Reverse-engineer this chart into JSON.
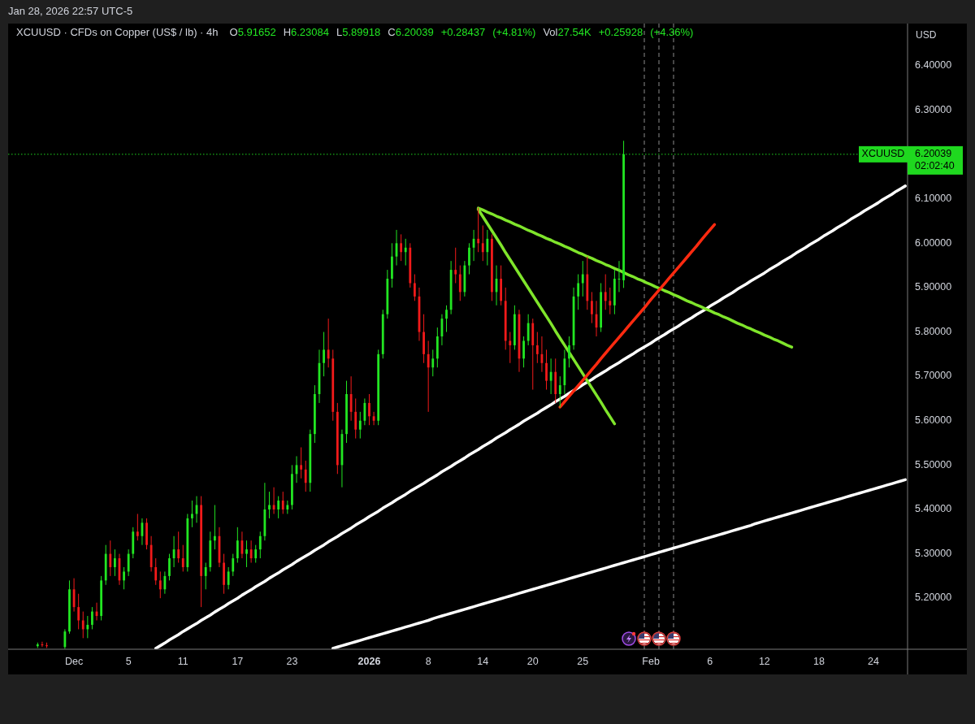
{
  "chart_data": {
    "type": "candlestick",
    "title": "XCUUSD · CFDs on Copper (US$ / lb) · 4h",
    "subtitle": "O5.91652 H6.23084 L5.89918 C6.20039 +0.28437 (+4.81%) Vol27.54K +0.25928 (+4.36%)",
    "ylabel": "USD",
    "annotations": [
      "Jan 28, 2026 22:57 UTC-5",
      "02:02:40"
    ],
    "ylim": [
      5.085,
      6.495
    ],
    "yticks": [
      {
        "value": 5.2,
        "label": "5.20000"
      },
      {
        "value": 5.3,
        "label": "5.30000"
      },
      {
        "value": 5.4,
        "label": "5.40000"
      },
      {
        "value": 5.5,
        "label": "5.50000"
      },
      {
        "value": 5.6,
        "label": "5.60000"
      },
      {
        "value": 5.7,
        "label": "5.70000"
      },
      {
        "value": 5.8,
        "label": "5.80000"
      },
      {
        "value": 5.9,
        "label": "5.90000"
      },
      {
        "value": 6.0,
        "label": "6.00000"
      },
      {
        "value": 6.1,
        "label": "6.10000"
      },
      {
        "value": 6.20039,
        "label": "6.20039"
      },
      {
        "value": 6.3,
        "label": "6.30000"
      },
      {
        "value": 6.4,
        "label": "6.40000"
      }
    ],
    "categories": [
      null,
      null,
      null,
      null,
      null,
      null,
      null,
      null,
      null,
      null,
      null,
      null,
      null,
      null,
      "Dec",
      null,
      null,
      null,
      null,
      null,
      null,
      null,
      null,
      null,
      null,
      null,
      "5",
      null,
      null,
      null,
      null,
      null,
      null,
      null,
      null,
      null,
      null,
      null,
      "11",
      null,
      null,
      null,
      null,
      null,
      null,
      null,
      null,
      null,
      null,
      null,
      "17",
      null,
      null,
      null,
      null,
      null,
      null,
      null,
      null,
      null,
      null,
      null,
      "23",
      null,
      null,
      null,
      null,
      null,
      null,
      null,
      null,
      null,
      null,
      null,
      null,
      null,
      null,
      null,
      null,
      "2026",
      null,
      null,
      null,
      null,
      null,
      null,
      null,
      null,
      null,
      null,
      null,
      null,
      "8",
      null,
      null,
      null,
      null,
      null,
      null,
      null,
      null,
      null,
      null,
      null,
      "14",
      null,
      null,
      null,
      null,
      null,
      null,
      null,
      null,
      null,
      null,
      "20",
      null,
      null,
      null,
      null,
      null,
      null,
      null,
      null,
      null,
      null,
      "25",
      null,
      null,
      null,
      null,
      null,
      null,
      null,
      null,
      null,
      null,
      null,
      null,
      null,
      null,
      "Feb",
      null,
      null,
      null,
      null,
      null,
      null,
      null,
      null,
      null,
      null,
      null,
      null,
      "6",
      null,
      null,
      null,
      null,
      null,
      null,
      null,
      null,
      null,
      null,
      null,
      "12",
      null,
      null,
      null,
      null,
      null,
      null,
      null,
      null,
      null,
      null,
      null,
      "18",
      null,
      null,
      null,
      null,
      null,
      null,
      null,
      null,
      null,
      null,
      null,
      "24",
      null,
      null,
      null,
      null,
      null,
      null,
      null
    ],
    "ohlc": [
      null,
      null,
      null,
      null,
      null,
      null,
      [
        5.092,
        5.1,
        5.088,
        5.096
      ],
      [
        5.096,
        5.102,
        5.09,
        5.094
      ],
      [
        5.094,
        5.1,
        5.088,
        5.092
      ],
      null,
      null,
      null,
      [
        5.09,
        5.13,
        5.086,
        5.125
      ],
      [
        5.125,
        5.24,
        5.12,
        5.22
      ],
      [
        5.22,
        5.245,
        5.17,
        5.18
      ],
      [
        5.18,
        5.21,
        5.13,
        5.15
      ],
      [
        5.15,
        5.17,
        5.11,
        5.13
      ],
      [
        5.13,
        5.16,
        5.11,
        5.14
      ],
      [
        5.14,
        5.18,
        5.13,
        5.17
      ],
      [
        5.17,
        5.19,
        5.15,
        5.16
      ],
      [
        5.16,
        5.25,
        5.15,
        5.24
      ],
      [
        5.24,
        5.32,
        5.23,
        5.3
      ],
      [
        5.3,
        5.33,
        5.25,
        5.27
      ],
      [
        5.27,
        5.31,
        5.25,
        5.29
      ],
      [
        5.29,
        5.3,
        5.23,
        5.24
      ],
      [
        5.24,
        5.27,
        5.22,
        5.26
      ],
      [
        5.26,
        5.31,
        5.25,
        5.3
      ],
      [
        5.3,
        5.36,
        5.29,
        5.35
      ],
      [
        5.35,
        5.39,
        5.33,
        5.34
      ],
      [
        5.34,
        5.38,
        5.32,
        5.37
      ],
      [
        5.37,
        5.38,
        5.31,
        5.32
      ],
      [
        5.32,
        5.34,
        5.26,
        5.27
      ],
      [
        5.27,
        5.29,
        5.23,
        5.24
      ],
      [
        5.24,
        5.26,
        5.2,
        5.22
      ],
      [
        5.22,
        5.26,
        5.21,
        5.25
      ],
      [
        5.25,
        5.3,
        5.24,
        5.29
      ],
      [
        5.29,
        5.34,
        5.27,
        5.31
      ],
      [
        5.31,
        5.35,
        5.28,
        5.29
      ],
      [
        5.29,
        5.32,
        5.26,
        5.27
      ],
      [
        5.27,
        5.39,
        5.26,
        5.38
      ],
      [
        5.38,
        5.42,
        5.36,
        5.39
      ],
      [
        5.39,
        5.43,
        5.37,
        5.41
      ],
      [
        5.41,
        5.43,
        5.18,
        5.25
      ],
      [
        5.25,
        5.28,
        5.22,
        5.27
      ],
      [
        5.27,
        5.35,
        5.26,
        5.33
      ],
      [
        5.33,
        5.41,
        5.31,
        5.34
      ],
      [
        5.34,
        5.36,
        5.27,
        5.28
      ],
      [
        5.28,
        5.3,
        5.21,
        5.23
      ],
      [
        5.23,
        5.27,
        5.22,
        5.26
      ],
      [
        5.26,
        5.3,
        5.25,
        5.29
      ],
      [
        5.29,
        5.36,
        5.28,
        5.33
      ],
      [
        5.33,
        5.35,
        5.29,
        5.3
      ],
      [
        5.3,
        5.33,
        5.27,
        5.31
      ],
      [
        5.31,
        5.33,
        5.28,
        5.29
      ],
      [
        5.29,
        5.32,
        5.28,
        5.31
      ],
      [
        5.31,
        5.35,
        5.29,
        5.34
      ],
      [
        5.34,
        5.46,
        5.33,
        5.4
      ],
      [
        5.4,
        5.44,
        5.38,
        5.41
      ],
      [
        5.41,
        5.45,
        5.39,
        5.4
      ],
      [
        5.4,
        5.43,
        5.38,
        5.42
      ],
      [
        5.42,
        5.44,
        5.39,
        5.4
      ],
      [
        5.4,
        5.42,
        5.39,
        5.41
      ],
      [
        5.41,
        5.5,
        5.4,
        5.48
      ],
      [
        5.48,
        5.52,
        5.46,
        5.5
      ],
      [
        5.5,
        5.54,
        5.47,
        5.49
      ],
      [
        5.49,
        5.51,
        5.44,
        5.46
      ],
      [
        5.46,
        5.58,
        5.44,
        5.57
      ],
      [
        5.57,
        5.68,
        5.55,
        5.66
      ],
      [
        5.66,
        5.76,
        5.64,
        5.73
      ],
      [
        5.73,
        5.8,
        5.7,
        5.76
      ],
      [
        5.76,
        5.83,
        5.72,
        5.74
      ],
      [
        5.74,
        5.76,
        5.6,
        5.62
      ],
      [
        5.62,
        5.64,
        5.48,
        5.5
      ],
      [
        5.5,
        5.58,
        5.45,
        5.57
      ],
      [
        5.57,
        5.69,
        5.55,
        5.66
      ],
      [
        5.66,
        5.7,
        5.6,
        5.62
      ],
      [
        5.62,
        5.65,
        5.56,
        5.58
      ],
      [
        5.58,
        5.62,
        5.56,
        5.6
      ],
      [
        5.6,
        5.65,
        5.59,
        5.64
      ],
      [
        5.64,
        5.66,
        5.59,
        5.61
      ],
      [
        5.61,
        5.62,
        5.59,
        5.6
      ],
      [
        5.6,
        5.76,
        5.59,
        5.75
      ],
      [
        5.75,
        5.85,
        5.74,
        5.84
      ],
      [
        5.84,
        5.94,
        5.83,
        5.92
      ],
      [
        5.92,
        6.0,
        5.9,
        5.97
      ],
      [
        5.97,
        6.03,
        5.95,
        6.0
      ],
      [
        6.0,
        6.02,
        5.96,
        5.98
      ],
      [
        5.98,
        6.01,
        5.95,
        5.99
      ],
      [
        5.99,
        6.0,
        5.9,
        5.91
      ],
      [
        5.91,
        5.93,
        5.87,
        5.88
      ],
      [
        5.88,
        5.9,
        5.78,
        5.8
      ],
      [
        5.8,
        5.84,
        5.73,
        5.75
      ],
      [
        5.75,
        5.78,
        5.62,
        5.72
      ],
      [
        5.72,
        5.76,
        5.7,
        5.74
      ],
      [
        5.74,
        5.81,
        5.72,
        5.79
      ],
      [
        5.79,
        5.84,
        5.77,
        5.83
      ],
      [
        5.83,
        5.86,
        5.8,
        5.85
      ],
      [
        5.85,
        5.96,
        5.84,
        5.94
      ],
      [
        5.94,
        5.99,
        5.91,
        5.93
      ],
      [
        5.93,
        5.95,
        5.87,
        5.89
      ],
      [
        5.89,
        5.96,
        5.88,
        5.95
      ],
      [
        5.95,
        6.0,
        5.93,
        5.99
      ],
      [
        5.99,
        6.03,
        5.96,
        6.01
      ],
      [
        6.01,
        6.08,
        5.98,
        6.0
      ],
      [
        6.0,
        6.04,
        5.96,
        5.98
      ],
      [
        5.98,
        6.03,
        5.95,
        6.01
      ],
      [
        6.01,
        6.02,
        5.87,
        5.89
      ],
      [
        5.89,
        5.95,
        5.86,
        5.92
      ],
      [
        5.92,
        5.95,
        5.86,
        5.87
      ],
      [
        5.87,
        5.9,
        5.76,
        5.78
      ],
      [
        5.78,
        5.8,
        5.73,
        5.77
      ],
      [
        5.77,
        5.86,
        5.76,
        5.84
      ],
      [
        5.84,
        5.85,
        5.71,
        5.74
      ],
      [
        5.74,
        5.79,
        5.72,
        5.78
      ],
      [
        5.78,
        5.84,
        5.77,
        5.82
      ],
      [
        5.82,
        5.83,
        5.67,
        5.77
      ],
      [
        5.77,
        5.8,
        5.73,
        5.75
      ],
      [
        5.75,
        5.79,
        5.71,
        5.73
      ],
      [
        5.73,
        5.76,
        5.67,
        5.69
      ],
      [
        5.69,
        5.74,
        5.66,
        5.71
      ],
      [
        5.71,
        5.74,
        5.64,
        5.66
      ],
      [
        5.66,
        5.7,
        5.63,
        5.68
      ],
      [
        5.68,
        5.76,
        5.66,
        5.74
      ],
      [
        5.74,
        5.79,
        5.72,
        5.77
      ],
      [
        5.77,
        5.9,
        5.76,
        5.88
      ],
      [
        5.88,
        5.93,
        5.85,
        5.91
      ],
      [
        5.91,
        5.96,
        5.88,
        5.93
      ],
      [
        5.93,
        5.97,
        5.85,
        5.87
      ],
      [
        5.87,
        5.89,
        5.82,
        5.84
      ],
      [
        5.84,
        5.87,
        5.79,
        5.81
      ],
      [
        5.81,
        5.91,
        5.8,
        5.89
      ],
      [
        5.89,
        5.93,
        5.85,
        5.87
      ],
      [
        5.87,
        5.9,
        5.84,
        5.86
      ],
      [
        5.86,
        5.94,
        5.84,
        5.92
      ],
      [
        5.92,
        5.96,
        5.89,
        5.92
      ],
      [
        5.91652,
        6.23084,
        5.89918,
        6.20039
      ],
      null,
      null,
      null,
      null,
      null,
      null,
      null,
      null,
      null,
      null,
      null,
      null,
      null,
      null,
      null,
      null,
      null,
      null,
      null,
      null,
      null,
      null,
      null,
      null,
      null,
      null,
      null,
      null,
      null,
      null,
      null,
      null,
      null,
      null,
      null,
      null,
      null,
      null,
      null,
      null,
      null,
      null,
      null,
      null,
      null,
      null,
      null,
      null,
      null,
      null,
      null,
      null,
      null,
      null,
      null,
      null,
      null,
      null,
      null,
      null,
      null,
      null
    ],
    "series": [
      {
        "type": "line",
        "color": "#ffffff",
        "values": [
          null,
          null,
          null,
          null,
          null,
          null,
          null,
          null,
          null,
          null,
          null,
          null,
          null,
          null,
          null,
          null,
          null,
          null,
          null,
          null,
          null,
          null,
          null,
          null,
          null,
          null,
          null,
          null,
          null,
          null,
          null,
          null,
          5.087,
          5.093,
          5.099,
          5.106,
          5.112,
          5.118,
          5.125,
          5.131,
          5.137,
          5.143,
          5.15,
          5.156,
          5.162,
          5.169,
          5.175,
          5.181,
          5.188,
          5.194,
          5.2,
          5.207,
          5.213,
          5.219,
          5.226,
          5.232,
          5.238,
          5.245,
          5.251,
          5.257,
          5.264,
          5.27,
          5.276,
          5.283,
          5.289,
          5.295,
          5.301,
          5.308,
          5.314,
          5.32,
          5.327,
          5.333,
          5.339,
          5.346,
          5.352,
          5.358,
          5.365,
          5.371,
          5.377,
          5.384,
          5.39,
          5.396,
          5.403,
          5.409,
          5.415,
          5.422,
          5.428,
          5.434,
          5.441,
          5.447,
          5.453,
          5.459,
          5.466,
          5.472,
          5.478,
          5.485,
          5.491,
          5.497,
          5.504,
          5.51,
          5.516,
          5.523,
          5.529,
          5.535,
          5.542,
          5.548,
          5.554,
          5.561,
          5.567,
          5.573,
          5.58,
          5.586,
          5.592,
          5.599,
          5.605,
          5.611,
          5.617,
          5.624,
          5.63,
          5.636,
          5.643,
          5.649,
          5.655,
          5.662,
          5.668,
          5.674,
          5.681,
          5.687,
          5.693,
          5.7,
          5.706,
          5.712,
          5.719,
          5.725,
          5.731,
          5.738,
          5.744,
          5.75,
          5.757,
          5.763,
          5.769,
          5.775,
          5.782,
          5.788,
          5.794,
          5.801,
          5.807,
          5.813,
          5.82,
          5.826,
          5.832,
          5.839,
          5.845,
          5.851,
          5.858,
          5.864,
          5.87,
          5.877,
          5.883,
          5.889,
          5.896,
          5.902,
          5.908,
          5.915,
          5.921,
          5.927,
          5.933,
          5.94,
          5.946,
          5.952,
          5.959,
          5.965,
          5.971,
          5.978,
          5.984,
          5.99,
          5.997,
          6.003,
          6.009,
          6.016,
          6.022,
          6.028,
          6.035,
          6.041,
          6.047,
          6.054,
          6.06,
          6.066,
          6.073,
          6.079,
          6.085,
          6.091,
          6.098,
          6.104,
          6.11,
          6.117,
          6.123,
          6.129
        ]
      },
      {
        "type": "line",
        "color": "#ffffff",
        "values": [
          null,
          null,
          null,
          null,
          null,
          null,
          null,
          null,
          null,
          null,
          null,
          null,
          null,
          null,
          null,
          null,
          null,
          null,
          null,
          null,
          null,
          null,
          null,
          null,
          null,
          null,
          null,
          null,
          null,
          null,
          null,
          null,
          null,
          null,
          null,
          null,
          null,
          null,
          null,
          null,
          null,
          null,
          null,
          null,
          null,
          null,
          null,
          null,
          null,
          null,
          null,
          null,
          null,
          null,
          null,
          null,
          null,
          null,
          null,
          null,
          null,
          null,
          null,
          null,
          null,
          null,
          null,
          null,
          null,
          null,
          null,
          5.087,
          5.09,
          5.093,
          5.096,
          5.099,
          5.102,
          5.105,
          5.108,
          5.111,
          5.114,
          5.117,
          5.12,
          5.123,
          5.126,
          5.129,
          5.132,
          5.135,
          5.138,
          5.141,
          5.144,
          5.147,
          5.15,
          5.154,
          5.157,
          5.16,
          5.163,
          5.166,
          5.169,
          5.172,
          5.175,
          5.178,
          5.181,
          5.184,
          5.187,
          5.19,
          5.193,
          5.196,
          5.199,
          5.202,
          5.205,
          5.208,
          5.211,
          5.214,
          5.217,
          5.22,
          5.223,
          5.226,
          5.229,
          5.232,
          5.235,
          5.238,
          5.241,
          5.244,
          5.247,
          5.25,
          5.253,
          5.256,
          5.259,
          5.262,
          5.265,
          5.268,
          5.271,
          5.274,
          5.277,
          5.28,
          5.283,
          5.286,
          5.289,
          5.292,
          5.295,
          5.298,
          5.301,
          5.304,
          5.307,
          5.31,
          5.313,
          5.316,
          5.319,
          5.322,
          5.325,
          5.328,
          5.331,
          5.334,
          5.337,
          5.34,
          5.343,
          5.346,
          5.349,
          5.352,
          5.355,
          5.358,
          5.361,
          5.364,
          5.368,
          5.371,
          5.374,
          5.377,
          5.38,
          5.383,
          5.386,
          5.389,
          5.392,
          5.395,
          5.398,
          5.401,
          5.404,
          5.407,
          5.41,
          5.413,
          5.416,
          5.419,
          5.422,
          5.425,
          5.428,
          5.431,
          5.434,
          5.437,
          5.44,
          5.443,
          5.446,
          5.449,
          5.452,
          5.455,
          5.458,
          5.461,
          5.464,
          5.467
        ]
      },
      {
        "type": "line",
        "color": "#7fe52b",
        "values": [
          null,
          null,
          null,
          null,
          null,
          null,
          null,
          null,
          null,
          null,
          null,
          null,
          null,
          null,
          null,
          null,
          null,
          null,
          null,
          null,
          null,
          null,
          null,
          null,
          null,
          null,
          null,
          null,
          null,
          null,
          null,
          null,
          null,
          null,
          null,
          null,
          null,
          null,
          null,
          null,
          null,
          null,
          null,
          null,
          null,
          null,
          null,
          null,
          null,
          null,
          null,
          null,
          null,
          null,
          null,
          null,
          null,
          null,
          null,
          null,
          null,
          null,
          null,
          null,
          null,
          null,
          null,
          null,
          null,
          null,
          null,
          null,
          null,
          null,
          null,
          null,
          null,
          null,
          null,
          null,
          null,
          null,
          null,
          null,
          null,
          null,
          null,
          null,
          null,
          null,
          null,
          null,
          null,
          null,
          null,
          null,
          null,
          null,
          null,
          null,
          null,
          null,
          null,
          6.079,
          6.075,
          6.07,
          6.066,
          6.061,
          6.057,
          6.052,
          6.048,
          6.043,
          6.039,
          6.034,
          6.029,
          6.025,
          6.02,
          6.016,
          6.011,
          6.007,
          6.002,
          5.998,
          5.993,
          5.989,
          5.984,
          5.979,
          5.975,
          5.97,
          5.966,
          5.961,
          5.957,
          5.952,
          5.948,
          5.943,
          5.939,
          5.934,
          5.929,
          5.925,
          5.92,
          5.916,
          5.911,
          5.907,
          5.902,
          5.898,
          5.893,
          5.889,
          5.884,
          5.88,
          5.875,
          5.87,
          5.866,
          5.861,
          5.857,
          5.852,
          5.848,
          5.843,
          5.839,
          5.834,
          5.83,
          5.825,
          5.82,
          5.816,
          5.811,
          5.807,
          5.802,
          5.798,
          5.793,
          5.789,
          5.784,
          5.78,
          5.775,
          5.77,
          5.766,
          null,
          null,
          null,
          null,
          null,
          null,
          null,
          null,
          null,
          null,
          null,
          null,
          null,
          null,
          null,
          null,
          null,
          null,
          null,
          null,
          null,
          null,
          null,
          null,
          null
        ]
      },
      {
        "type": "line",
        "color": "#7fe52b",
        "values": [
          null,
          null,
          null,
          null,
          null,
          null,
          null,
          null,
          null,
          null,
          null,
          null,
          null,
          null,
          null,
          null,
          null,
          null,
          null,
          null,
          null,
          null,
          null,
          null,
          null,
          null,
          null,
          null,
          null,
          null,
          null,
          null,
          null,
          null,
          null,
          null,
          null,
          null,
          null,
          null,
          null,
          null,
          null,
          null,
          null,
          null,
          null,
          null,
          null,
          null,
          null,
          null,
          null,
          null,
          null,
          null,
          null,
          null,
          null,
          null,
          null,
          null,
          null,
          null,
          null,
          null,
          null,
          null,
          null,
          null,
          null,
          null,
          null,
          null,
          null,
          null,
          null,
          null,
          null,
          null,
          null,
          null,
          null,
          null,
          null,
          null,
          null,
          null,
          null,
          null,
          null,
          null,
          null,
          null,
          null,
          null,
          null,
          null,
          null,
          null,
          null,
          null,
          null,
          6.076,
          6.06,
          6.044,
          6.028,
          6.012,
          5.996,
          5.979,
          5.963,
          5.947,
          5.931,
          5.915,
          5.899,
          5.883,
          5.867,
          5.851,
          5.835,
          5.819,
          5.802,
          5.786,
          5.77,
          5.754,
          5.738,
          5.722,
          5.706,
          5.69,
          5.674,
          5.658,
          5.642,
          5.625,
          5.609,
          5.593,
          null,
          null,
          null,
          null,
          null,
          null,
          null,
          null,
          null,
          null,
          null,
          null,
          null,
          null,
          null,
          null,
          null,
          null,
          null,
          null,
          null,
          null,
          null,
          null,
          null,
          null,
          null,
          null,
          null,
          null,
          null,
          null,
          null,
          null,
          null,
          null,
          null,
          null,
          null,
          null,
          null,
          null,
          null,
          null,
          null,
          null,
          null,
          null,
          null,
          null,
          null,
          null,
          null,
          null,
          null,
          null,
          null,
          null,
          null,
          null,
          null,
          null,
          null,
          null
        ]
      },
      {
        "type": "line",
        "color": "#ff2a10",
        "values": [
          null,
          null,
          null,
          null,
          null,
          null,
          null,
          null,
          null,
          null,
          null,
          null,
          null,
          null,
          null,
          null,
          null,
          null,
          null,
          null,
          null,
          null,
          null,
          null,
          null,
          null,
          null,
          null,
          null,
          null,
          null,
          null,
          null,
          null,
          null,
          null,
          null,
          null,
          null,
          null,
          null,
          null,
          null,
          null,
          null,
          null,
          null,
          null,
          null,
          null,
          null,
          null,
          null,
          null,
          null,
          null,
          null,
          null,
          null,
          null,
          null,
          null,
          null,
          null,
          null,
          null,
          null,
          null,
          null,
          null,
          null,
          null,
          null,
          null,
          null,
          null,
          null,
          null,
          null,
          null,
          null,
          null,
          null,
          null,
          null,
          null,
          null,
          null,
          null,
          null,
          null,
          null,
          null,
          null,
          null,
          null,
          null,
          null,
          null,
          null,
          null,
          null,
          null,
          null,
          null,
          null,
          null,
          null,
          null,
          null,
          null,
          null,
          null,
          null,
          null,
          null,
          null,
          null,
          null,
          null,
          null,
          5.631,
          5.643,
          5.655,
          5.667,
          5.679,
          5.691,
          5.703,
          5.715,
          5.727,
          5.74,
          5.752,
          5.764,
          5.776,
          5.788,
          5.8,
          5.812,
          5.824,
          5.836,
          5.848,
          5.86,
          5.873,
          5.885,
          5.897,
          5.909,
          5.921,
          5.933,
          5.945,
          5.957,
          5.969,
          5.981,
          5.993,
          6.006,
          6.018,
          6.03,
          6.042,
          null,
          null,
          null,
          null,
          null,
          null,
          null,
          null,
          null,
          null,
          null,
          null,
          null,
          null,
          null,
          null,
          null,
          null,
          null,
          null,
          null,
          null,
          null,
          null,
          null,
          null,
          null,
          null,
          null,
          null,
          null,
          null,
          null,
          null,
          null,
          null,
          null,
          null,
          null,
          null,
          null,
          null
        ]
      }
    ],
    "ref_lines": [
      {
        "axis": "y",
        "value": 6.20039,
        "label": "XCUUSD",
        "color": "#1fd81f",
        "line_style": "dotted"
      }
    ]
  }
}
